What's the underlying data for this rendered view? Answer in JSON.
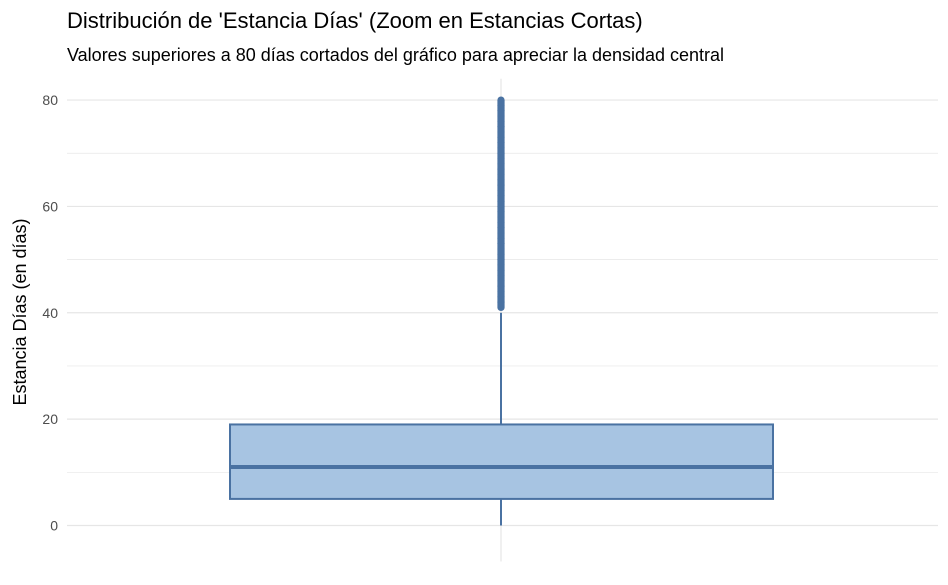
{
  "chart_data": {
    "type": "boxplot",
    "title": "Distribución de 'Estancia Días' (Zoom en Estancias Cortas)",
    "subtitle": "Valores superiores a 80 días cortados del gráfico para apreciar la densidad central",
    "xlabel": "",
    "ylabel": "Estancia Días (en días)",
    "ylim": [
      -3,
      84
    ],
    "yticks": [
      0,
      20,
      40,
      60,
      80
    ],
    "grid": true,
    "box": {
      "min": 0,
      "q1": 5,
      "median": 11,
      "q3": 19,
      "whisker_high": 40,
      "outliers": [
        41,
        42,
        43,
        44,
        45,
        46,
        47,
        48,
        49,
        50,
        51,
        52,
        53,
        54,
        55,
        56,
        57,
        58,
        59,
        60,
        61,
        62,
        63,
        64,
        65,
        66,
        67,
        68,
        69,
        70,
        71,
        72,
        73,
        74,
        75,
        76,
        77,
        78,
        79,
        80
      ]
    },
    "colors": {
      "box_fill": "#a7c4e2",
      "box_stroke": "#4a72a2",
      "outlier": "#4a72a2",
      "grid": "#e6e6e6"
    }
  }
}
